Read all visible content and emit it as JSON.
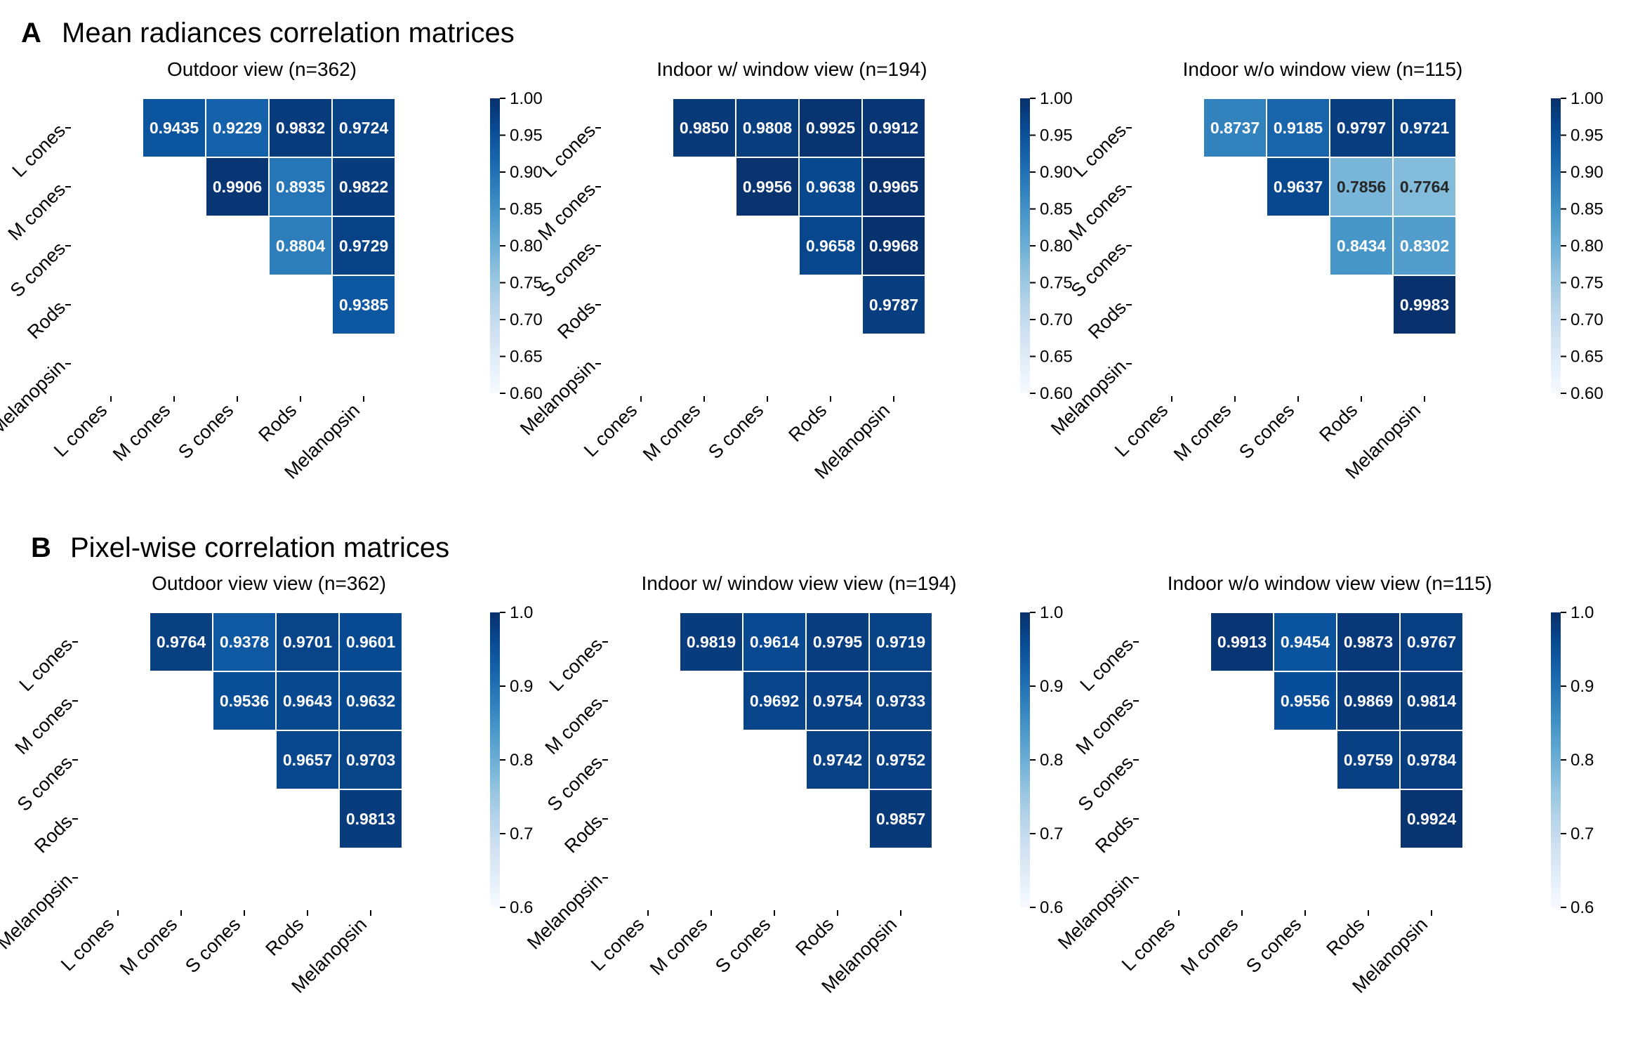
{
  "panels": [
    {
      "letter": "A",
      "title": "Mean radiances correlation matrices",
      "subplots": [
        {
          "title": "Outdoor view (n=362)"
        },
        {
          "title": "Indoor w/ window view (n=194)"
        },
        {
          "title": "Indoor w/o window view (n=115)"
        }
      ],
      "colorbar": {
        "min": 0.6,
        "max": 1.0,
        "ticks": [
          "0.60",
          "0.65",
          "0.70",
          "0.75",
          "0.80",
          "0.85",
          "0.90",
          "0.95",
          "1.00"
        ]
      }
    },
    {
      "letter": "B",
      "title": "Pixel-wise correlation matrices",
      "subplots": [
        {
          "title": "Outdoor view view (n=362)"
        },
        {
          "title": "Indoor w/ window view view (n=194)"
        },
        {
          "title": "Indoor w/o window view view (n=115)"
        }
      ],
      "colorbar": {
        "min": 0.6,
        "max": 1.0,
        "ticks": [
          "0.6",
          "0.7",
          "0.8",
          "0.9",
          "1.0"
        ]
      }
    }
  ],
  "chart_data": [
    {
      "type": "heatmap",
      "panel": "A",
      "title": "Outdoor view (n=362)",
      "colormap": "Blues",
      "vmin": 0.6,
      "vmax": 1.0,
      "rows": [
        "L cones",
        "M cones",
        "S cones",
        "Rods",
        "Melanopsin"
      ],
      "cols": [
        "L cones",
        "M cones",
        "S cones",
        "Rods",
        "Melanopsin"
      ],
      "values": [
        [
          null,
          "0.9435",
          "0.9229",
          "0.9832",
          "0.9724"
        ],
        [
          null,
          null,
          "0.9906",
          "0.8935",
          "0.9822"
        ],
        [
          null,
          null,
          null,
          "0.8804",
          "0.9729"
        ],
        [
          null,
          null,
          null,
          null,
          "0.9385"
        ],
        [
          null,
          null,
          null,
          null,
          null
        ]
      ]
    },
    {
      "type": "heatmap",
      "panel": "A",
      "title": "Indoor w/ window view (n=194)",
      "colormap": "Blues",
      "vmin": 0.6,
      "vmax": 1.0,
      "rows": [
        "L cones",
        "M cones",
        "S cones",
        "Rods",
        "Melanopsin"
      ],
      "cols": [
        "L cones",
        "M cones",
        "S cones",
        "Rods",
        "Melanopsin"
      ],
      "values": [
        [
          null,
          "0.9850",
          "0.9808",
          "0.9925",
          "0.9912"
        ],
        [
          null,
          null,
          "0.9956",
          "0.9638",
          "0.9965"
        ],
        [
          null,
          null,
          null,
          "0.9658",
          "0.9968"
        ],
        [
          null,
          null,
          null,
          null,
          "0.9787"
        ],
        [
          null,
          null,
          null,
          null,
          null
        ]
      ]
    },
    {
      "type": "heatmap",
      "panel": "A",
      "title": "Indoor w/o window view (n=115)",
      "colormap": "Blues",
      "vmin": 0.6,
      "vmax": 1.0,
      "rows": [
        "L cones",
        "M cones",
        "S cones",
        "Rods",
        "Melanopsin"
      ],
      "cols": [
        "L cones",
        "M cones",
        "S cones",
        "Rods",
        "Melanopsin"
      ],
      "values": [
        [
          null,
          "0.8737",
          "0.9185",
          "0.9797",
          "0.9721"
        ],
        [
          null,
          null,
          "0.9637",
          "0.7856",
          "0.7764"
        ],
        [
          null,
          null,
          null,
          "0.8434",
          "0.8302"
        ],
        [
          null,
          null,
          null,
          null,
          "0.9983"
        ],
        [
          null,
          null,
          null,
          null,
          null
        ]
      ]
    },
    {
      "type": "heatmap",
      "panel": "B",
      "title": "Outdoor view view (n=362)",
      "colormap": "Blues",
      "vmin": 0.6,
      "vmax": 1.0,
      "rows": [
        "L cones",
        "M cones",
        "S cones",
        "Rods",
        "Melanopsin"
      ],
      "cols": [
        "L cones",
        "M cones",
        "S cones",
        "Rods",
        "Melanopsin"
      ],
      "values": [
        [
          null,
          "0.9764",
          "0.9378",
          "0.9701",
          "0.9601"
        ],
        [
          null,
          null,
          "0.9536",
          "0.9643",
          "0.9632"
        ],
        [
          null,
          null,
          null,
          "0.9657",
          "0.9703"
        ],
        [
          null,
          null,
          null,
          null,
          "0.9813"
        ],
        [
          null,
          null,
          null,
          null,
          null
        ]
      ]
    },
    {
      "type": "heatmap",
      "panel": "B",
      "title": "Indoor w/ window view view (n=194)",
      "colormap": "Blues",
      "vmin": 0.6,
      "vmax": 1.0,
      "rows": [
        "L cones",
        "M cones",
        "S cones",
        "Rods",
        "Melanopsin"
      ],
      "cols": [
        "L cones",
        "M cones",
        "S cones",
        "Rods",
        "Melanopsin"
      ],
      "values": [
        [
          null,
          "0.9819",
          "0.9614",
          "0.9795",
          "0.9719"
        ],
        [
          null,
          null,
          "0.9692",
          "0.9754",
          "0.9733"
        ],
        [
          null,
          null,
          null,
          "0.9742",
          "0.9752"
        ],
        [
          null,
          null,
          null,
          null,
          "0.9857"
        ],
        [
          null,
          null,
          null,
          null,
          null
        ]
      ]
    },
    {
      "type": "heatmap",
      "panel": "B",
      "title": "Indoor w/o window view view (n=115)",
      "colormap": "Blues",
      "vmin": 0.6,
      "vmax": 1.0,
      "rows": [
        "L cones",
        "M cones",
        "S cones",
        "Rods",
        "Melanopsin"
      ],
      "cols": [
        "L cones",
        "M cones",
        "S cones",
        "Rods",
        "Melanopsin"
      ],
      "values": [
        [
          null,
          "0.9913",
          "0.9454",
          "0.9873",
          "0.9767"
        ],
        [
          null,
          null,
          "0.9556",
          "0.9869",
          "0.9814"
        ],
        [
          null,
          null,
          null,
          "0.9759",
          "0.9784"
        ],
        [
          null,
          null,
          null,
          null,
          "0.9924"
        ],
        [
          null,
          null,
          null,
          null,
          null
        ]
      ]
    }
  ]
}
